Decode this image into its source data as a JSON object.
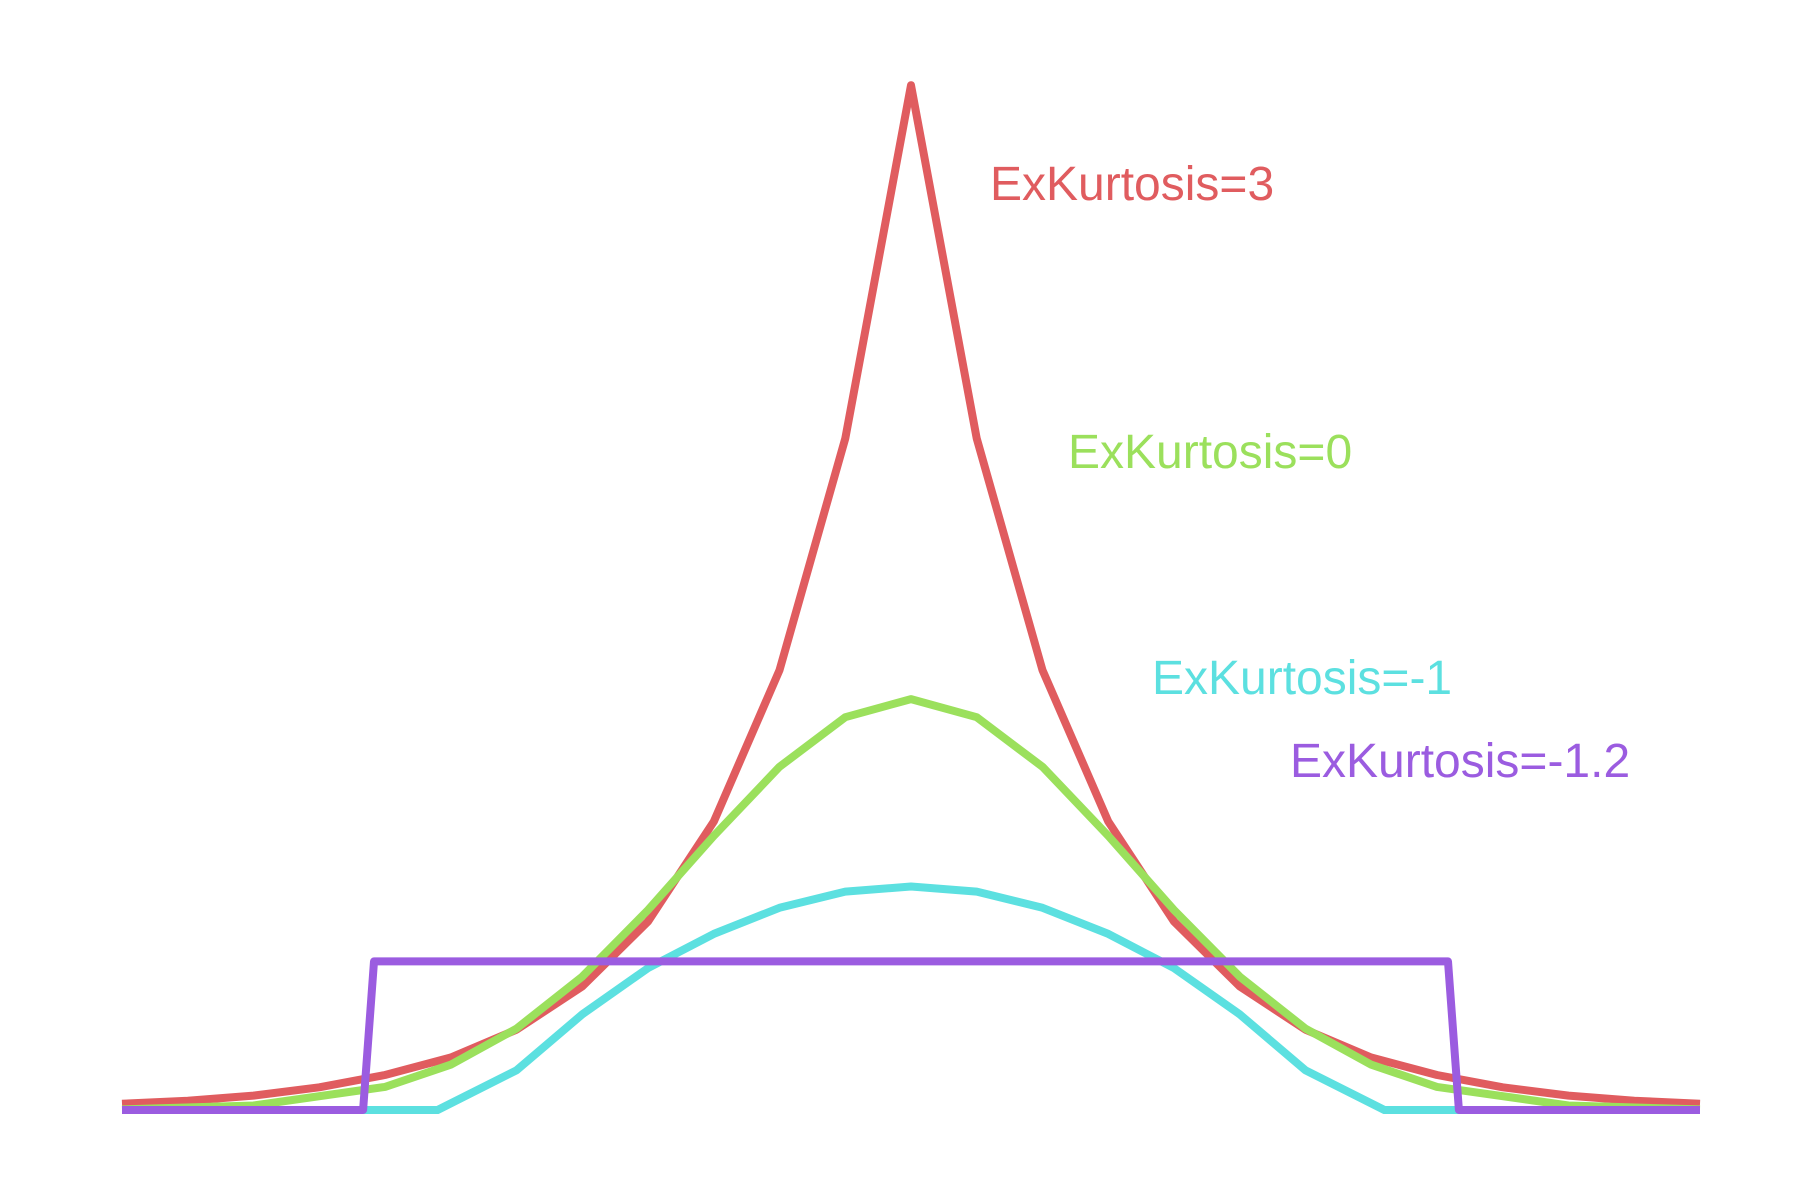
{
  "chart_data": {
    "type": "line",
    "title": "",
    "xlabel": "",
    "ylabel": "",
    "grid": false,
    "axes_visible": false,
    "xlim": [
      -3.6,
      3.6
    ],
    "ylim": [
      0,
      1.0
    ],
    "series": [
      {
        "name": "ExKurtosis=3",
        "distribution": "laplace",
        "color": "#e05c5f",
        "x": [
          -3.6,
          -3.3,
          -3.0,
          -2.7,
          -2.4,
          -2.1,
          -1.8,
          -1.5,
          -1.2,
          -0.9,
          -0.6,
          -0.3,
          0.0,
          0.3,
          0.6,
          0.9,
          1.2,
          1.5,
          1.8,
          2.1,
          2.4,
          2.7,
          3.0,
          3.3,
          3.6
        ],
        "values": [
          0.006,
          0.009,
          0.014,
          0.022,
          0.034,
          0.051,
          0.078,
          0.12,
          0.183,
          0.28,
          0.427,
          0.652,
          0.995,
          0.652,
          0.427,
          0.28,
          0.183,
          0.12,
          0.078,
          0.051,
          0.034,
          0.022,
          0.014,
          0.009,
          0.006
        ]
      },
      {
        "name": "ExKurtosis=0",
        "distribution": "normal",
        "color": "#9be05c",
        "x": [
          -3.6,
          -3.0,
          -2.4,
          -2.1,
          -1.8,
          -1.5,
          -1.2,
          -0.9,
          -0.6,
          -0.3,
          0.0,
          0.3,
          0.6,
          0.9,
          1.2,
          1.5,
          1.8,
          2.1,
          2.4,
          3.0,
          3.6
        ],
        "values": [
          0.0006,
          0.0044,
          0.0224,
          0.044,
          0.079,
          0.1295,
          0.1942,
          0.2661,
          0.3332,
          0.3814,
          0.3989,
          0.3814,
          0.3332,
          0.2661,
          0.1942,
          0.1295,
          0.079,
          0.044,
          0.0224,
          0.0044,
          0.0006
        ]
      },
      {
        "name": "ExKurtosis=-1",
        "distribution": "raised cosine",
        "color": "#5ce0e0",
        "x": [
          -3.6,
          -2.16,
          -1.8,
          -1.5,
          -1.2,
          -0.9,
          -0.6,
          -0.3,
          0.0,
          0.3,
          0.6,
          0.9,
          1.2,
          1.5,
          1.8,
          2.16,
          3.6
        ],
        "values": [
          0.0,
          0.0,
          0.0385,
          0.0929,
          0.1378,
          0.171,
          0.1963,
          0.212,
          0.217,
          0.212,
          0.1963,
          0.171,
          0.1378,
          0.0929,
          0.0385,
          0.0,
          0.0
        ]
      },
      {
        "name": "ExKurtosis=-1.2",
        "distribution": "uniform",
        "color": "#9b5ce0",
        "x": [
          -3.6,
          -2.5,
          -2.45,
          2.45,
          2.5,
          3.6
        ],
        "values": [
          0.0,
          0.0,
          0.1443,
          0.1443,
          0.0,
          0.0
        ]
      }
    ]
  }
}
